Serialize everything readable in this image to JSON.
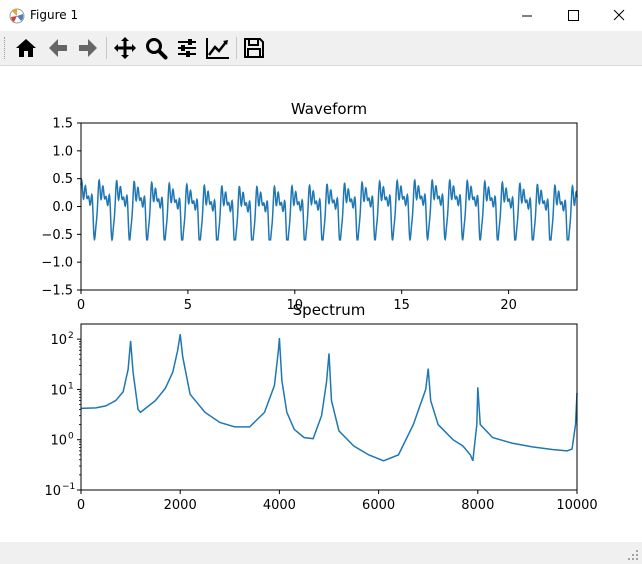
{
  "window": {
    "title": "Figure 1",
    "controls": [
      "minimize-icon",
      "maximize-icon",
      "close-icon"
    ]
  },
  "toolbar": {
    "buttons": [
      {
        "name": "home-icon"
      },
      {
        "name": "back-arrow-icon"
      },
      {
        "name": "forward-arrow-icon"
      },
      {
        "name": "pan-icon"
      },
      {
        "name": "zoom-icon"
      },
      {
        "name": "subplots-icon"
      },
      {
        "name": "edit-axis-icon"
      },
      {
        "name": "save-icon"
      }
    ]
  },
  "colors": {
    "series": "#1f77b4",
    "toolbar_bg": "#f0f0f0"
  },
  "chart_data": [
    {
      "type": "line",
      "title": "Waveform",
      "xlabel": "",
      "ylabel": "",
      "xlim": [
        0,
        23.2
      ],
      "ylim": [
        -1.5,
        1.5
      ],
      "xticks": [
        0,
        5,
        10,
        15,
        20
      ],
      "xtick_labels": [
        "0",
        "5",
        "10",
        "15",
        "20"
      ],
      "yticks": [
        -1.5,
        -1.0,
        -0.5,
        0.0,
        0.5,
        1.0,
        1.5
      ],
      "ytick_labels": [
        "−1.5",
        "−1.0",
        "−0.5",
        "0.0",
        "0.5",
        "1.0",
        "1.5"
      ],
      "grid": false,
      "signal": {
        "period": 0.82,
        "peak_max": 0.55,
        "peak_min": -0.6
      }
    },
    {
      "type": "line",
      "title": "Spectrum",
      "xlabel": "",
      "ylabel": "",
      "yscale": "log",
      "xlim": [
        0,
        10000
      ],
      "ylim": [
        0.1,
        200
      ],
      "xticks": [
        0,
        2000,
        4000,
        6000,
        8000,
        10000
      ],
      "xtick_labels": [
        "0",
        "2000",
        "4000",
        "6000",
        "8000",
        "10000"
      ],
      "ytick_labels": [
        "10",
        "10",
        "10",
        "10"
      ],
      "ytick_exponents": [
        "−1",
        "0",
        "1",
        "2"
      ],
      "yticks": [
        0.1,
        1,
        10,
        100
      ],
      "grid": false,
      "x": [
        0,
        300,
        500,
        700,
        850,
        950,
        1000,
        1050,
        1150,
        1200,
        1300,
        1500,
        1700,
        1850,
        1950,
        2000,
        2050,
        2200,
        2500,
        2800,
        3100,
        3400,
        3700,
        3900,
        3980,
        4000,
        4050,
        4150,
        4300,
        4500,
        4680,
        4850,
        4950,
        5000,
        5050,
        5200,
        5500,
        5800,
        6100,
        6400,
        6700,
        6950,
        7000,
        7050,
        7200,
        7500,
        7700,
        7850,
        7900,
        7980,
        8000,
        8050,
        8300,
        8700,
        9100,
        9500,
        9800,
        9900,
        9970,
        10000
      ],
      "values": [
        4.2,
        4.3,
        4.7,
        6.0,
        9.0,
        25,
        92,
        22,
        4.0,
        3.5,
        4.2,
        6.0,
        10.5,
        22,
        60,
        125,
        45,
        8.0,
        3.5,
        2.2,
        1.8,
        1.8,
        3.5,
        12,
        60,
        105,
        15,
        3.5,
        1.6,
        1.1,
        1.05,
        3.0,
        14,
        52,
        6.0,
        1.5,
        0.75,
        0.5,
        0.38,
        0.5,
        2.0,
        10,
        26,
        6.0,
        2.0,
        1.0,
        0.75,
        0.5,
        0.38,
        2.0,
        11,
        2.0,
        1.1,
        0.85,
        0.72,
        0.64,
        0.6,
        0.65,
        2.0,
        8.5
      ]
    }
  ]
}
